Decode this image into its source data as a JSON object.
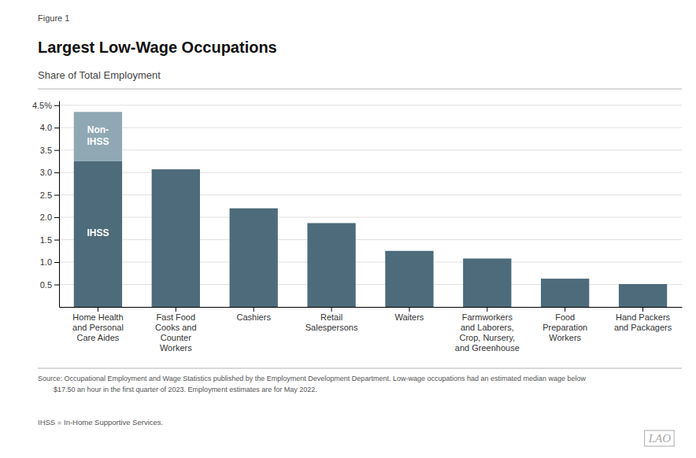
{
  "chart_data": {
    "type": "bar",
    "figure_label": "Figure 1",
    "title": "Largest Low-Wage Occupations",
    "subtitle": "Share of Total Employment",
    "categories": [
      "Home Health\nand Personal\nCare Aides",
      "Fast Food\nCooks and\nCounter\nWorkers",
      "Cashiers",
      "Retail\nSalespersons",
      "Waiters",
      "Farmworkers\nand Laborers,\nCrop, Nursery,\nand Greenhouse",
      "Food\nPreparation\nWorkers",
      "Hand Packers\nand Packagers"
    ],
    "series": [
      {
        "name": "IHSS",
        "color": "#4d6b7a",
        "values": [
          3.25,
          3.07,
          2.2,
          1.87,
          1.25,
          1.08,
          0.63,
          0.51
        ]
      },
      {
        "name": "Non-\nIHSS",
        "color": "#8fa8b4",
        "values": [
          1.1,
          null,
          null,
          null,
          null,
          null,
          null,
          null
        ]
      }
    ],
    "stacked": true,
    "ylim": [
      0,
      4.6
    ],
    "yticks": [
      0.5,
      {
        "value": 1.0,
        "label": "1.0"
      },
      1.5,
      {
        "value": 2.0,
        "label": "2.0"
      },
      2.5,
      {
        "value": 3.0,
        "label": "3.0"
      },
      3.5,
      {
        "value": 4.0,
        "label": "4.0"
      },
      {
        "value": 4.5,
        "label": "4.5%"
      }
    ],
    "grid": true,
    "source": [
      "Source: Occupational Employment and Wage Statistics published by the Employment Development Department. Low-wage occupations had an estimated median wage below",
      "        $17.50 an hour in the first quarter of 2023. Employment estimates are for May 2022."
    ],
    "footnote": "IHSS = In-Home Supportive Services.",
    "logo": "LAO"
  }
}
